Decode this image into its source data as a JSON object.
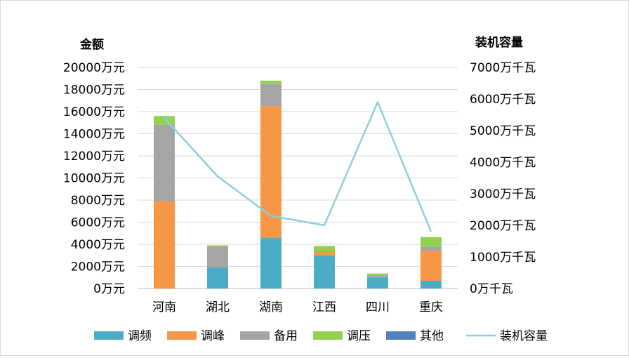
{
  "chart_data": {
    "type": "bar",
    "stacked": true,
    "categories": [
      "河南",
      "湖北",
      "湖南",
      "江西",
      "四川",
      "重庆"
    ],
    "left_axis": {
      "title": "金额",
      "ylim": [
        0,
        20000
      ],
      "ticks": [
        "0万元",
        "2000万元",
        "4000万元",
        "6000万元",
        "8000万元",
        "10000万元",
        "12000万元",
        "14000万元",
        "16000万元",
        "18000万元",
        "20000万元"
      ]
    },
    "right_axis": {
      "title": "装机容量",
      "ylim": [
        0,
        7000
      ],
      "ticks": [
        "0万千瓦",
        "1000万千瓦",
        "2000万千瓦",
        "3000万千瓦",
        "4000万千瓦",
        "5000万千瓦",
        "6000万千瓦",
        "7000万千瓦"
      ]
    },
    "series": [
      {
        "name": "调频",
        "color": "#4bacc6",
        "values": [
          0,
          1900,
          4600,
          3000,
          1000,
          700
        ]
      },
      {
        "name": "调峰",
        "color": "#f79646",
        "values": [
          7900,
          0,
          11900,
          300,
          0,
          2700
        ]
      },
      {
        "name": "备用",
        "color": "#a5a5a5",
        "values": [
          6900,
          1900,
          2000,
          100,
          200,
          400
        ]
      },
      {
        "name": "调压",
        "color": "#92d050",
        "values": [
          800,
          100,
          300,
          450,
          150,
          850
        ]
      },
      {
        "name": "其他",
        "color": "#4f81bd",
        "values": [
          0,
          0,
          0,
          0,
          0,
          0
        ]
      }
    ],
    "line": {
      "name": "装机容量",
      "color": "#92cddc",
      "axis": "right",
      "values": [
        5400,
        3550,
        2300,
        2000,
        5900,
        1800
      ]
    },
    "legend_position": "bottom",
    "grid": true
  }
}
